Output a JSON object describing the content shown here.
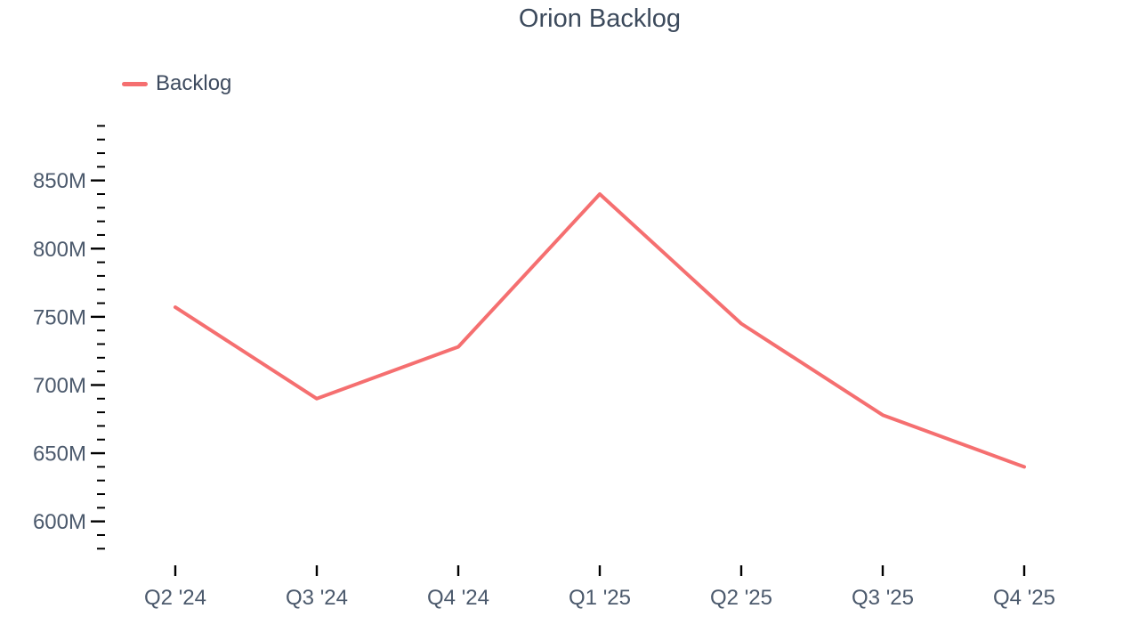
{
  "header": {
    "title": "Orion Backlog"
  },
  "legend": {
    "items": [
      {
        "label": "Backlog",
        "swatch_color": "#f56f70"
      }
    ]
  },
  "chart_data": {
    "type": "line",
    "title": "Orion Backlog",
    "categories": [
      "Q2 '24",
      "Q3 '24",
      "Q4 '24",
      "Q1 '25",
      "Q2 '25",
      "Q3 '25",
      "Q4 '25"
    ],
    "series": [
      {
        "name": "Backlog",
        "color": "#f56f70",
        "values": [
          757,
          690,
          728,
          840,
          745,
          678,
          640
        ]
      }
    ],
    "value_unit": "M",
    "value_unit_meaning": "millions",
    "xlabel": "",
    "ylabel": "",
    "y_axis": {
      "min": 580,
      "max": 890,
      "major_tick_step": 50,
      "minor_tick_step": 10,
      "labels": [
        "600M",
        "650M",
        "700M",
        "750M",
        "800M",
        "850M"
      ],
      "label_suffix": "M"
    },
    "grid": false,
    "legend_position": "top-left",
    "colors": {
      "line": "#f56f70",
      "title_text": "#3c4a5c",
      "axis_label_text": "#4b596c",
      "tick_marks": "#000000",
      "background": "#ffffff"
    }
  }
}
